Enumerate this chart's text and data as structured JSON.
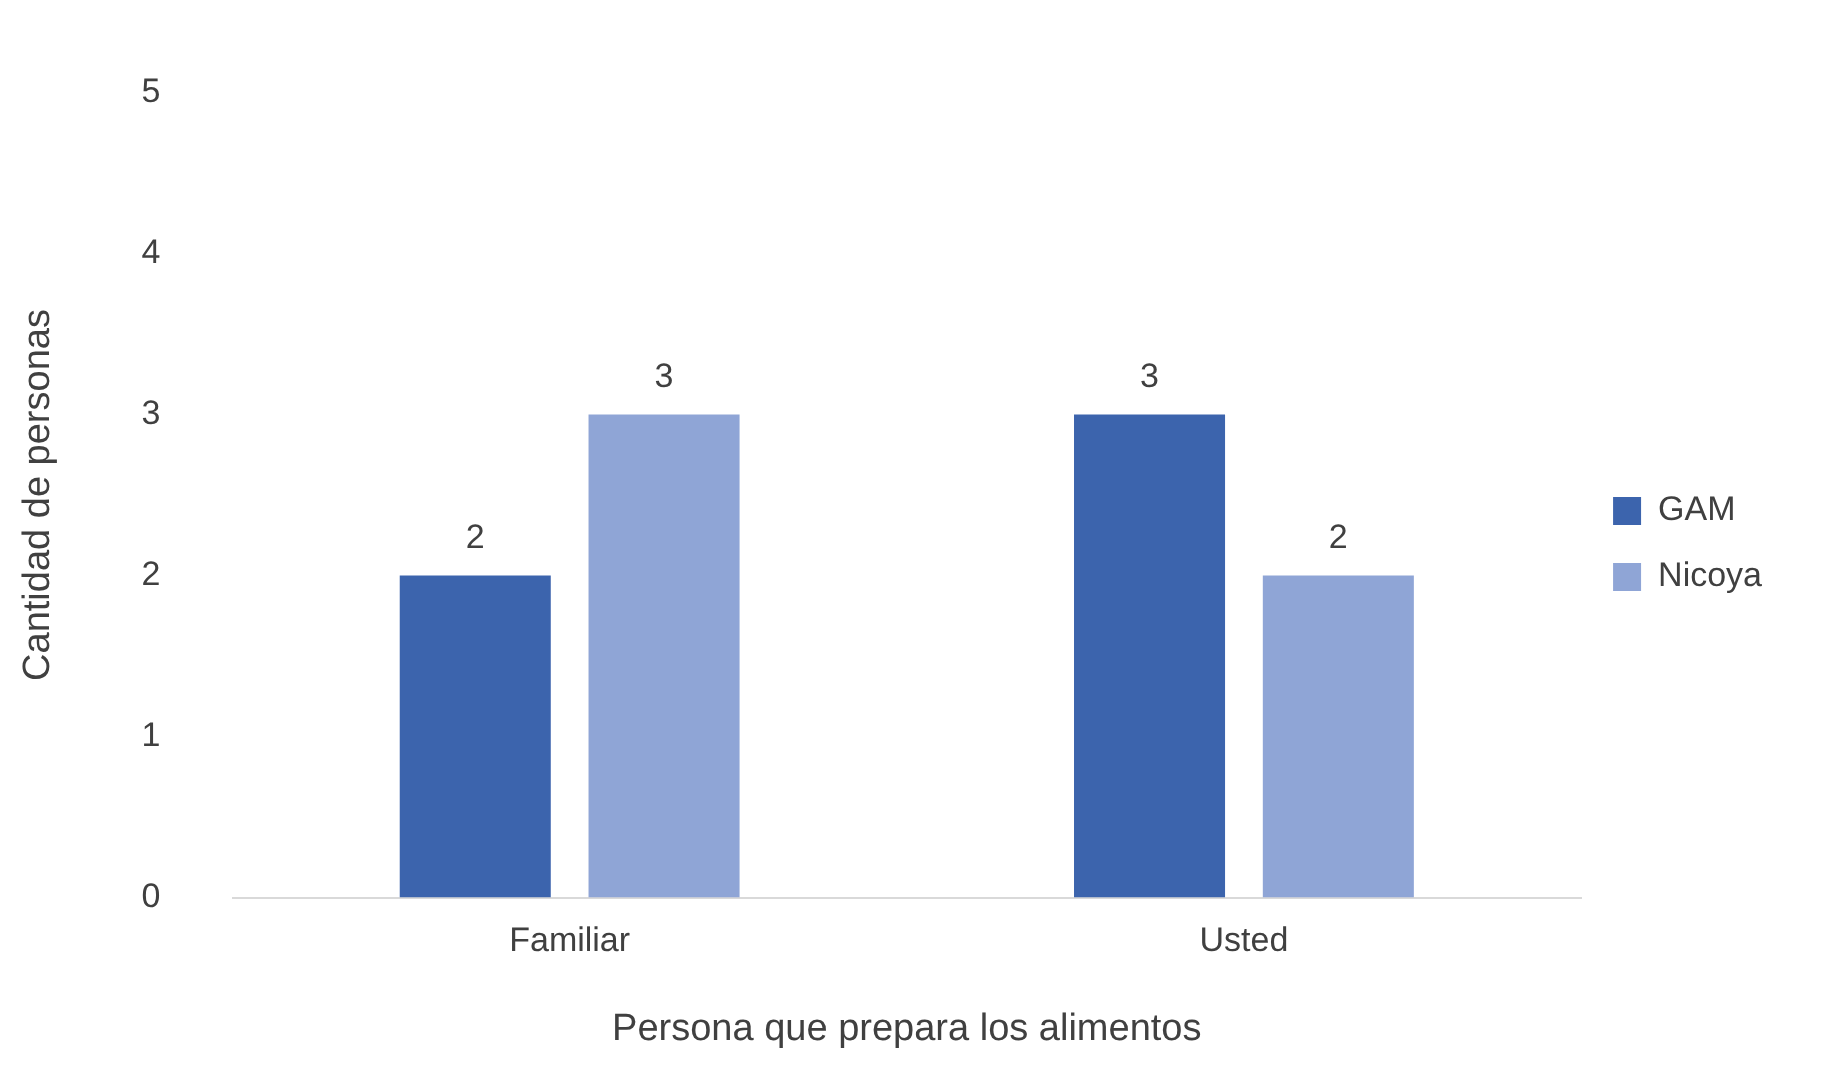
{
  "chart_data": {
    "type": "bar",
    "xlabel": "Persona que prepara los alimentos",
    "ylabel": "Cantidad de personas",
    "categories": [
      "Familiar",
      "Usted"
    ],
    "series": [
      {
        "name": "GAM",
        "color": "#3c64ad",
        "values": [
          2,
          3
        ]
      },
      {
        "name": "Nicoya",
        "color": "#8fa5d6",
        "values": [
          3,
          2
        ]
      }
    ],
    "ylim": [
      0,
      5
    ],
    "yticks": [
      0,
      1,
      2,
      3,
      4,
      5
    ],
    "grid": false,
    "legend": "right",
    "data_labels": true
  }
}
